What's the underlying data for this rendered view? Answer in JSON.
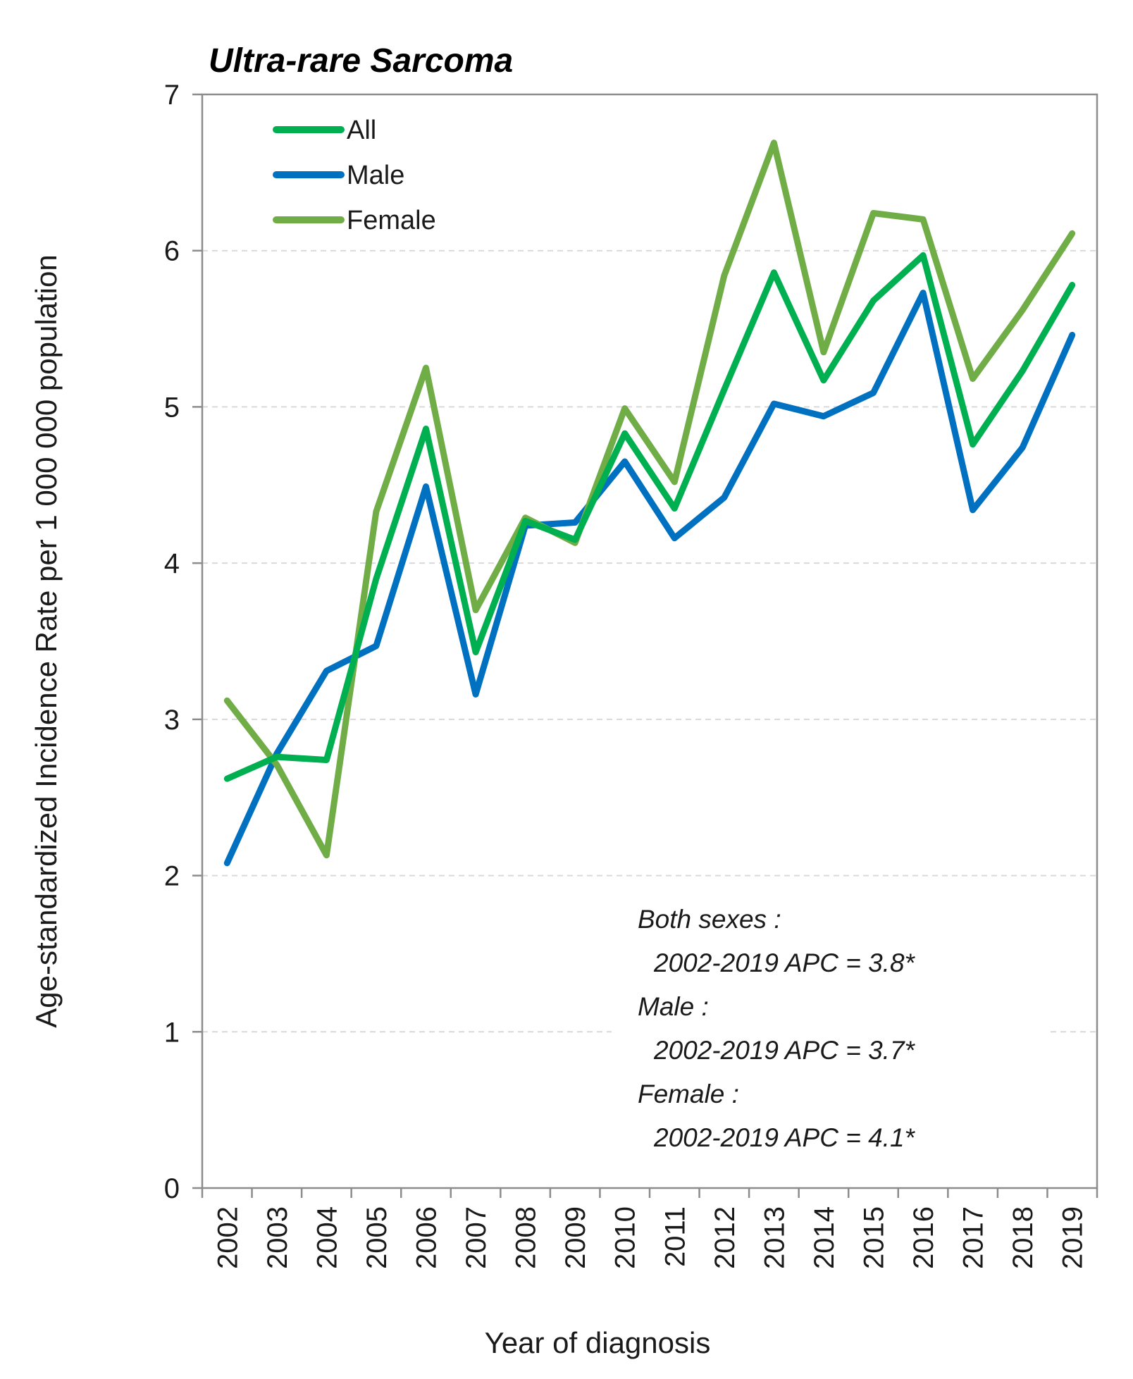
{
  "chart_data": {
    "type": "line",
    "title": "Ultra-rare Sarcoma",
    "xlabel": "Year of diagnosis",
    "ylabel": "Age-standardized Incidence Rate per 1 000 000 population",
    "x": [
      "2002",
      "2003",
      "2004",
      "2005",
      "2006",
      "2007",
      "2008",
      "2009",
      "2010",
      "2011",
      "2012",
      "2013",
      "2014",
      "2015",
      "2016",
      "2017",
      "2018",
      "2019"
    ],
    "ylim": [
      0,
      7
    ],
    "yticks": [
      "0",
      "1",
      "2",
      "3",
      "4",
      "5",
      "6",
      "7"
    ],
    "grid": "horizontal dashed",
    "legend_position": "top-left",
    "series": [
      {
        "name": "All",
        "color": "#00b050",
        "values": [
          2.62,
          2.76,
          2.74,
          3.9,
          4.86,
          3.43,
          4.27,
          4.15,
          4.83,
          4.35,
          5.11,
          5.86,
          5.17,
          5.68,
          5.97,
          4.76,
          5.23,
          5.78
        ]
      },
      {
        "name": "Male",
        "color": "#0070c0",
        "values": [
          2.08,
          2.78,
          3.31,
          3.47,
          4.49,
          3.16,
          4.24,
          4.26,
          4.65,
          4.16,
          4.42,
          5.02,
          4.94,
          5.09,
          5.73,
          4.34,
          4.74,
          5.46
        ]
      },
      {
        "name": "Female",
        "color": "#70ad47",
        "values": [
          3.12,
          2.71,
          2.13,
          4.33,
          5.25,
          3.7,
          4.29,
          4.13,
          4.99,
          4.52,
          5.84,
          6.69,
          5.35,
          6.24,
          6.2,
          5.18,
          5.62,
          6.11
        ]
      }
    ],
    "annotations": [
      "Both sexes :",
      "2002-2019 APC = 3.8*",
      "Male :",
      "2002-2019 APC = 3.7*",
      "Female :",
      "2002-2019 APC = 4.1*"
    ]
  }
}
